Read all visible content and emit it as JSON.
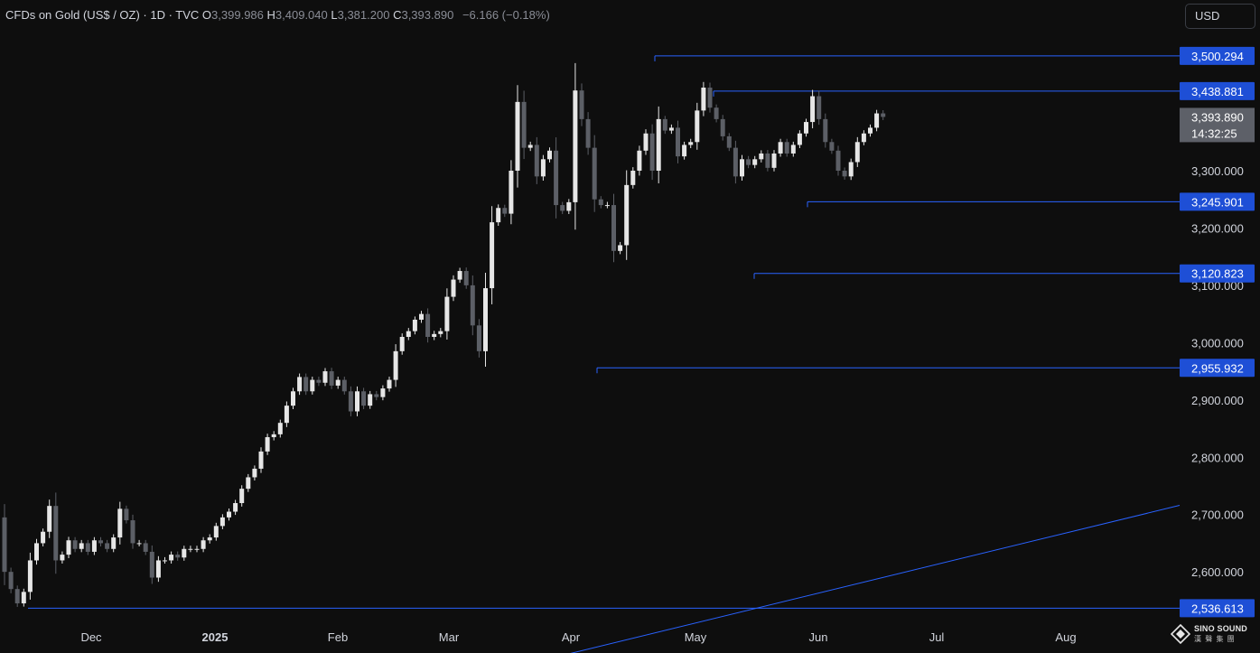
{
  "legend": {
    "title": "CFDs on Gold (US$ / OZ) · 1D · TVC",
    "o_label": "O",
    "o_value": "3,399.986",
    "h_label": "H",
    "h_value": "3,409.040",
    "l_label": "L",
    "l_value": "3,381.200",
    "c_label": "C",
    "c_value": "3,393.890",
    "change": "−6.166 (−0.18%)"
  },
  "currency_button": "USD",
  "colors": {
    "background": "#0e0e0e",
    "candle_up": "#e6e6e6",
    "candle_down": "#5c5f66",
    "level_line": "#2962ff",
    "level_label_bg": "#1e4fd6",
    "price_label_bg": "#5d6068",
    "axis_text": "#d1d4dc"
  },
  "logo": {
    "name": "SINO SOUND",
    "subtitle": "漢 聲 集 團",
    "icon": "diamond-logo-icon"
  },
  "chart_data": {
    "type": "candlestick",
    "symbol": "CFDs on Gold (US$ / OZ)",
    "interval": "1D",
    "y_axis": {
      "ticks": [
        {
          "value": 2600,
          "label": "2,600.000"
        },
        {
          "value": 2700,
          "label": "2,700.000"
        },
        {
          "value": 2800,
          "label": "2,800.000"
        },
        {
          "value": 2900,
          "label": "2,900.000"
        },
        {
          "value": 3000,
          "label": "3,000.000"
        },
        {
          "value": 3100,
          "label": "3,100.000"
        },
        {
          "value": 3200,
          "label": "3,200.000"
        },
        {
          "value": 3300,
          "label": "3,300.000"
        }
      ]
    },
    "x_axis": {
      "ticks": [
        {
          "label": "Dec",
          "bold": false
        },
        {
          "label": "2025",
          "bold": true
        },
        {
          "label": "Feb",
          "bold": false
        },
        {
          "label": "Mar",
          "bold": false
        },
        {
          "label": "Apr",
          "bold": false
        },
        {
          "label": "May",
          "bold": false
        },
        {
          "label": "Jun",
          "bold": false
        },
        {
          "label": "Jul",
          "bold": false
        },
        {
          "label": "Aug",
          "bold": false
        }
      ]
    },
    "levels": [
      {
        "value": 3500.294,
        "label": "3,500.294",
        "from": "Apr"
      },
      {
        "value": 3438.881,
        "label": "3,438.881",
        "from": "May"
      },
      {
        "value": 3245.901,
        "label": "3,245.901",
        "from": "Jun"
      },
      {
        "value": 3120.823,
        "label": "3,120.823",
        "from": "May"
      },
      {
        "value": 2955.932,
        "label": "2,955.932",
        "from": "Apr"
      },
      {
        "value": 2536.613,
        "label": "2,536.613",
        "from": "Nov"
      }
    ],
    "trendline": {
      "start": 2454,
      "end": 2716
    },
    "last_price": {
      "value": 3393.89,
      "label": "3,393.890",
      "countdown": "14:32:25"
    },
    "candles": {
      "dates": "2024-11-12 to 2025-08-08 (daily)",
      "open": [
        2695,
        2600,
        2570,
        2545,
        2565,
        2620,
        2650,
        2670,
        2715,
        2620,
        2630,
        2655,
        2640,
        2650,
        2635,
        2655,
        2650,
        2640,
        2660,
        2710,
        2690,
        2650,
        2650,
        2635,
        2590,
        2620,
        2620,
        2630,
        2625,
        2640,
        2640,
        2640,
        2655,
        2660,
        2680,
        2695,
        2705,
        2720,
        2745,
        2765,
        2780,
        2810,
        2835,
        2840,
        2860,
        2890,
        2915,
        2940,
        2915,
        2935,
        2930,
        2950,
        2925,
        2935,
        2915,
        2880,
        2915,
        2890,
        2910,
        2905,
        2920,
        2935,
        2985,
        3010,
        3020,
        3040,
        3050,
        3010,
        3015,
        3020,
        3080,
        3110,
        3125,
        3100,
        3030,
        2985,
        3095,
        3210,
        3235,
        3225,
        3300,
        3420,
        3340,
        3345,
        3290,
        3320,
        3335,
        3240,
        3230,
        3245,
        3440,
        3390,
        3340,
        3250,
        3240,
        3240,
        3160,
        3170,
        3275,
        3300,
        3335,
        3365,
        3300,
        3390,
        3370,
        3375,
        3325,
        3345,
        3350,
        3405,
        3445,
        3410,
        3390,
        3360,
        3340,
        3290,
        3320,
        3310,
        3320,
        3330,
        3305,
        3330,
        3350,
        3330,
        3345,
        3365,
        3385,
        3430,
        3390,
        3350,
        3335,
        3300,
        3290,
        3315,
        3350,
        3365,
        3375,
        3400
      ]
    }
  }
}
